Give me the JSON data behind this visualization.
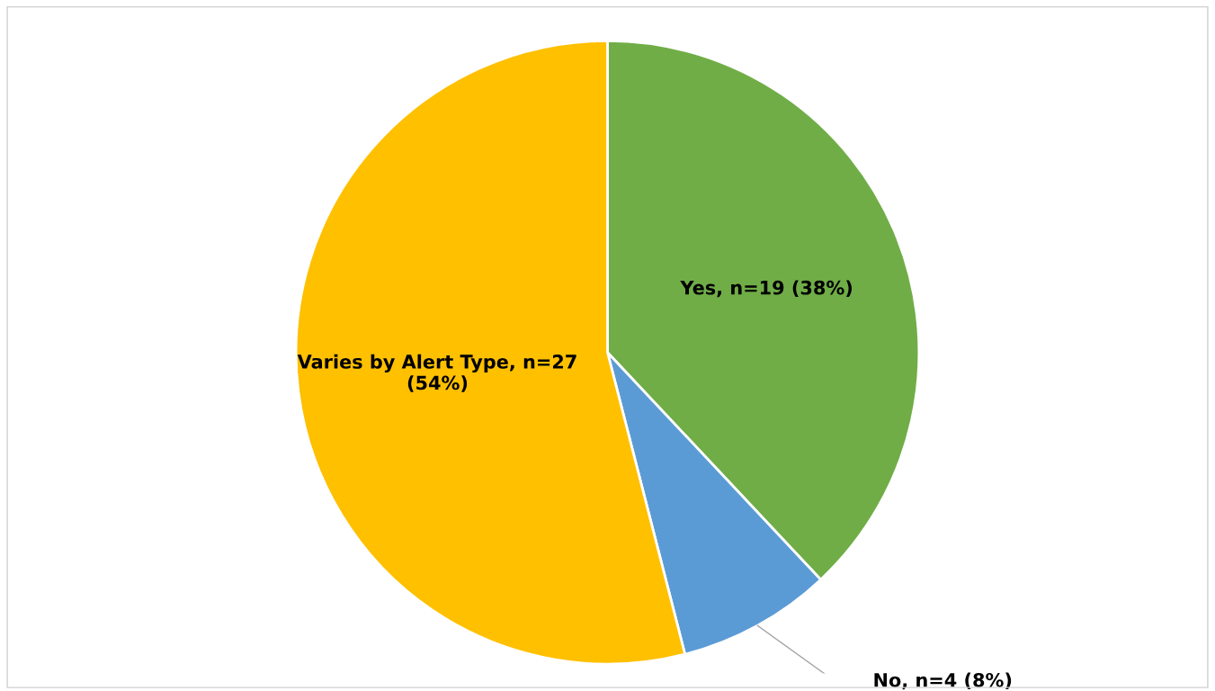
{
  "chart_data": {
    "type": "pie",
    "categories": [
      "Yes, n=19 (38%)",
      "No, n=4 (8%)",
      "Varies by Alert Type, n=27 (54%)"
    ],
    "values": [
      38,
      8,
      54
    ],
    "colors": [
      "#70ad47",
      "#5b9bd5",
      "#ffc000"
    ],
    "legend": false
  }
}
